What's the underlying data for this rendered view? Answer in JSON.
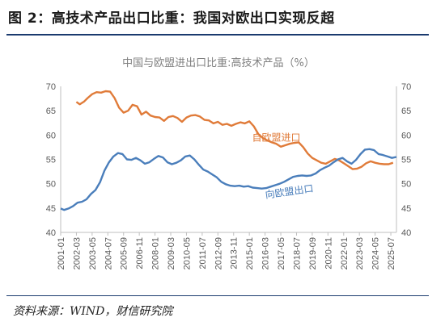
{
  "figure": {
    "title": "图 2：高技术产品出口比重：我国对欧出口实现反超",
    "source": "资料来源：WIND，财信研究院"
  },
  "chart_data": {
    "type": "line",
    "title": "中国与欧盟进出口比重:高技术产品（%）",
    "xlabel": "",
    "ylabel": "",
    "ylim": [
      40,
      70
    ],
    "yticks": [
      40,
      45,
      50,
      55,
      60,
      65,
      70
    ],
    "y_axes": "left-and-right",
    "xlim": [
      "2001-01",
      "2025-12"
    ],
    "x_tick_labels": [
      "2001-01",
      "2002-03",
      "2003-05",
      "2004-07",
      "2005-09",
      "2006-11",
      "2008-01",
      "2009-03",
      "2010-05",
      "2011-07",
      "2012-09",
      "2013-11",
      "2015-01",
      "2016-03",
      "2017-05",
      "2018-07",
      "2019-09",
      "2020-11",
      "2022-01",
      "2023-03",
      "2024-05",
      "2025-07"
    ],
    "grid": false,
    "legend": "inline-labels",
    "colors": {
      "import": "#e07b39",
      "export": "#4a7ebb"
    },
    "series": [
      {
        "name": "自欧盟进口",
        "color": "#e07b39",
        "label_at": [
          "2017-01",
          58.8
        ],
        "points": [
          [
            "2002-03",
            66.8
          ],
          [
            "2002-06",
            66.3
          ],
          [
            "2002-10",
            66.9
          ],
          [
            "2003-01",
            67.6
          ],
          [
            "2003-05",
            68.4
          ],
          [
            "2003-09",
            68.8
          ],
          [
            "2004-01",
            68.7
          ],
          [
            "2004-05",
            69.0
          ],
          [
            "2004-09",
            68.9
          ],
          [
            "2005-01",
            67.6
          ],
          [
            "2005-05",
            65.6
          ],
          [
            "2005-09",
            64.6
          ],
          [
            "2006-01",
            65.0
          ],
          [
            "2006-05",
            66.2
          ],
          [
            "2006-09",
            65.9
          ],
          [
            "2007-01",
            64.2
          ],
          [
            "2007-05",
            64.8
          ],
          [
            "2007-09",
            64.0
          ],
          [
            "2008-01",
            63.7
          ],
          [
            "2008-05",
            63.6
          ],
          [
            "2008-09",
            62.9
          ],
          [
            "2009-01",
            63.7
          ],
          [
            "2009-05",
            63.9
          ],
          [
            "2009-09",
            63.5
          ],
          [
            "2010-01",
            62.7
          ],
          [
            "2010-05",
            63.6
          ],
          [
            "2010-09",
            64.0
          ],
          [
            "2011-01",
            64.1
          ],
          [
            "2011-05",
            63.8
          ],
          [
            "2011-09",
            63.1
          ],
          [
            "2012-01",
            63.0
          ],
          [
            "2012-05",
            62.4
          ],
          [
            "2012-09",
            62.7
          ],
          [
            "2013-01",
            62.1
          ],
          [
            "2013-05",
            62.3
          ],
          [
            "2013-09",
            61.9
          ],
          [
            "2014-01",
            62.3
          ],
          [
            "2014-05",
            62.6
          ],
          [
            "2014-09",
            62.4
          ],
          [
            "2015-01",
            62.8
          ],
          [
            "2015-05",
            61.8
          ],
          [
            "2015-09",
            60.2
          ],
          [
            "2016-01",
            59.4
          ],
          [
            "2016-05",
            58.9
          ],
          [
            "2016-09",
            58.5
          ],
          [
            "2017-01",
            58.2
          ],
          [
            "2017-05",
            57.6
          ],
          [
            "2017-09",
            57.9
          ],
          [
            "2018-01",
            58.2
          ],
          [
            "2018-05",
            58.4
          ],
          [
            "2018-09",
            58.5
          ],
          [
            "2019-01",
            57.5
          ],
          [
            "2019-05",
            56.2
          ],
          [
            "2019-09",
            55.3
          ],
          [
            "2020-01",
            54.8
          ],
          [
            "2020-05",
            54.3
          ],
          [
            "2020-09",
            54.1
          ],
          [
            "2021-01",
            54.6
          ],
          [
            "2021-05",
            55.1
          ],
          [
            "2021-09",
            54.8
          ],
          [
            "2022-01",
            54.2
          ],
          [
            "2022-05",
            53.6
          ],
          [
            "2022-09",
            53.0
          ],
          [
            "2023-01",
            53.1
          ],
          [
            "2023-05",
            53.5
          ],
          [
            "2023-09",
            54.2
          ],
          [
            "2024-01",
            54.6
          ],
          [
            "2024-05",
            54.3
          ],
          [
            "2024-09",
            54.1
          ],
          [
            "2025-01",
            54.0
          ],
          [
            "2025-05",
            54.0
          ],
          [
            "2025-09",
            54.3
          ]
        ]
      },
      {
        "name": "向欧盟出口",
        "color": "#4a7ebb",
        "label_at": [
          "2018-01",
          47.7
        ],
        "points": [
          [
            "2001-01",
            44.9
          ],
          [
            "2001-04",
            44.6
          ],
          [
            "2001-08",
            44.9
          ],
          [
            "2001-12",
            45.4
          ],
          [
            "2002-04",
            46.1
          ],
          [
            "2002-08",
            46.3
          ],
          [
            "2002-12",
            46.8
          ],
          [
            "2003-04",
            47.9
          ],
          [
            "2003-08",
            48.7
          ],
          [
            "2003-12",
            50.3
          ],
          [
            "2004-04",
            52.7
          ],
          [
            "2004-08",
            54.4
          ],
          [
            "2004-12",
            55.6
          ],
          [
            "2005-04",
            56.3
          ],
          [
            "2005-08",
            56.1
          ],
          [
            "2005-12",
            55.0
          ],
          [
            "2006-04",
            54.9
          ],
          [
            "2006-08",
            55.3
          ],
          [
            "2006-12",
            54.8
          ],
          [
            "2007-04",
            54.1
          ],
          [
            "2007-08",
            54.4
          ],
          [
            "2007-12",
            55.1
          ],
          [
            "2008-04",
            55.7
          ],
          [
            "2008-08",
            55.4
          ],
          [
            "2008-12",
            54.4
          ],
          [
            "2009-04",
            54.0
          ],
          [
            "2009-08",
            54.3
          ],
          [
            "2009-12",
            54.8
          ],
          [
            "2010-04",
            55.6
          ],
          [
            "2010-08",
            55.8
          ],
          [
            "2010-12",
            55.0
          ],
          [
            "2011-04",
            53.9
          ],
          [
            "2011-08",
            52.9
          ],
          [
            "2011-12",
            52.5
          ],
          [
            "2012-04",
            51.9
          ],
          [
            "2012-08",
            51.3
          ],
          [
            "2012-12",
            50.4
          ],
          [
            "2013-04",
            49.9
          ],
          [
            "2013-08",
            49.6
          ],
          [
            "2013-12",
            49.5
          ],
          [
            "2014-04",
            49.6
          ],
          [
            "2014-08",
            49.4
          ],
          [
            "2014-12",
            49.5
          ],
          [
            "2015-04",
            49.2
          ],
          [
            "2015-08",
            49.1
          ],
          [
            "2015-12",
            49.0
          ],
          [
            "2016-04",
            49.1
          ],
          [
            "2016-08",
            49.4
          ],
          [
            "2016-12",
            49.7
          ],
          [
            "2017-04",
            50.0
          ],
          [
            "2017-08",
            50.4
          ],
          [
            "2017-12",
            50.9
          ],
          [
            "2018-04",
            51.4
          ],
          [
            "2018-08",
            51.6
          ],
          [
            "2018-12",
            51.7
          ],
          [
            "2019-04",
            51.6
          ],
          [
            "2019-08",
            51.7
          ],
          [
            "2019-12",
            52.1
          ],
          [
            "2020-04",
            52.8
          ],
          [
            "2020-08",
            53.3
          ],
          [
            "2020-12",
            53.7
          ],
          [
            "2021-04",
            54.4
          ],
          [
            "2021-08",
            55.0
          ],
          [
            "2021-12",
            55.3
          ],
          [
            "2022-04",
            54.6
          ],
          [
            "2022-08",
            54.1
          ],
          [
            "2022-12",
            54.9
          ],
          [
            "2023-04",
            56.1
          ],
          [
            "2023-08",
            57.0
          ],
          [
            "2023-12",
            57.1
          ],
          [
            "2024-04",
            56.9
          ],
          [
            "2024-08",
            56.1
          ],
          [
            "2024-12",
            55.9
          ],
          [
            "2025-04",
            55.6
          ],
          [
            "2025-08",
            55.3
          ],
          [
            "2025-12",
            55.5
          ]
        ]
      }
    ]
  }
}
